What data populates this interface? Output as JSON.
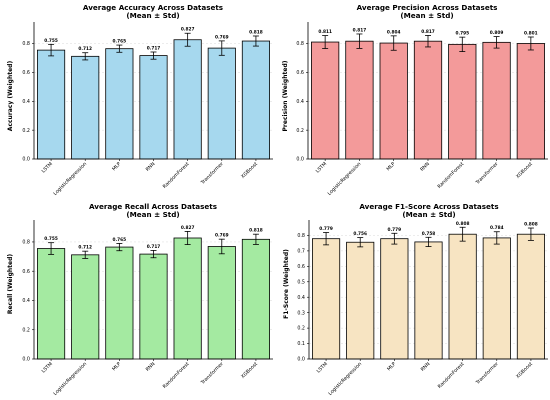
{
  "chart_data": [
    {
      "type": "bar",
      "title": "Average Accuracy Across Datasets",
      "subtitle": "(Mean ± Std)",
      "xlabel": "",
      "ylabel": "Accuracy (Weighted)",
      "categories": [
        "LSTM",
        "LogisticRegression",
        "MLP",
        "RNN",
        "RandomForest",
        "Transformer",
        "XGBoost"
      ],
      "values": [
        0.755,
        0.712,
        0.765,
        0.717,
        0.827,
        0.769,
        0.818
      ],
      "errors": [
        0.04,
        0.025,
        0.025,
        0.025,
        0.045,
        0.05,
        0.035
      ],
      "data_labels": [
        "0.755",
        "0.712",
        "0.765",
        "0.717",
        "0.827",
        "0.769",
        "0.818"
      ],
      "yticks": [
        "0.0",
        "0.2",
        "0.4",
        "0.6",
        "0.8"
      ],
      "ytick_values": [
        0,
        0.2,
        0.4,
        0.6,
        0.8
      ],
      "ylim": [
        0,
        0.95
      ],
      "grid": "y",
      "bar_color": "#a6d8ee"
    },
    {
      "type": "bar",
      "title": "Average Precision Across Datasets",
      "subtitle": "(Mean ± Std)",
      "xlabel": "",
      "ylabel": "Precision (Weighted)",
      "categories": [
        "LSTM",
        "LogisticRegression",
        "MLP",
        "RNN",
        "RandomForest",
        "Transformer",
        "XGBoost"
      ],
      "values": [
        0.811,
        0.817,
        0.804,
        0.817,
        0.795,
        0.809,
        0.801
      ],
      "errors": [
        0.045,
        0.05,
        0.05,
        0.04,
        0.05,
        0.04,
        0.045
      ],
      "data_labels": [
        "0.811",
        "0.817",
        "0.804",
        "0.817",
        "0.795",
        "0.809",
        "0.801"
      ],
      "yticks": [
        "0.0",
        "0.2",
        "0.4",
        "0.6",
        "0.8"
      ],
      "ytick_values": [
        0,
        0.2,
        0.4,
        0.6,
        0.8
      ],
      "ylim": [
        0,
        0.95
      ],
      "grid": "y",
      "bar_color": "#f39a9a"
    },
    {
      "type": "bar",
      "title": "Average Recall Across Datasets",
      "subtitle": "(Mean ± Std)",
      "xlabel": "",
      "ylabel": "Recall (Weighted)",
      "categories": [
        "LSTM",
        "LogisticRegression",
        "MLP",
        "RNN",
        "RandomForest",
        "Transformer",
        "XGBoost"
      ],
      "values": [
        0.755,
        0.712,
        0.765,
        0.717,
        0.827,
        0.769,
        0.818
      ],
      "errors": [
        0.04,
        0.025,
        0.025,
        0.025,
        0.045,
        0.05,
        0.035
      ],
      "data_labels": [
        "0.755",
        "0.712",
        "0.765",
        "0.717",
        "0.827",
        "0.769",
        "0.818"
      ],
      "yticks": [
        "0.0",
        "0.2",
        "0.4",
        "0.6",
        "0.8"
      ],
      "ytick_values": [
        0,
        0.2,
        0.4,
        0.6,
        0.8
      ],
      "ylim": [
        0,
        0.95
      ],
      "grid": "y",
      "bar_color": "#a4eaa1"
    },
    {
      "type": "bar",
      "title": "Average F1-Score Across Datasets",
      "subtitle": "(Mean ± Std)",
      "xlabel": "",
      "ylabel": "F1-Score (Weighted)",
      "categories": [
        "LSTM",
        "LogisticRegression",
        "MLP",
        "RNN",
        "RandomForest",
        "Transformer",
        "XGBoost"
      ],
      "values": [
        0.779,
        0.756,
        0.779,
        0.758,
        0.808,
        0.784,
        0.808
      ],
      "errors": [
        0.04,
        0.03,
        0.035,
        0.03,
        0.045,
        0.04,
        0.04
      ],
      "data_labels": [
        "0.779",
        "0.756",
        "0.779",
        "0.758",
        "0.808",
        "0.784",
        "0.808"
      ],
      "yticks": [
        "0.0",
        "0.1",
        "0.2",
        "0.3",
        "0.4",
        "0.5",
        "0.6",
        "0.7",
        "0.8"
      ],
      "ytick_values": [
        0,
        0.1,
        0.2,
        0.3,
        0.4,
        0.5,
        0.6,
        0.7,
        0.8
      ],
      "ylim": [
        0,
        0.9
      ],
      "grid": "y",
      "bar_color": "#f7e4c2"
    }
  ]
}
